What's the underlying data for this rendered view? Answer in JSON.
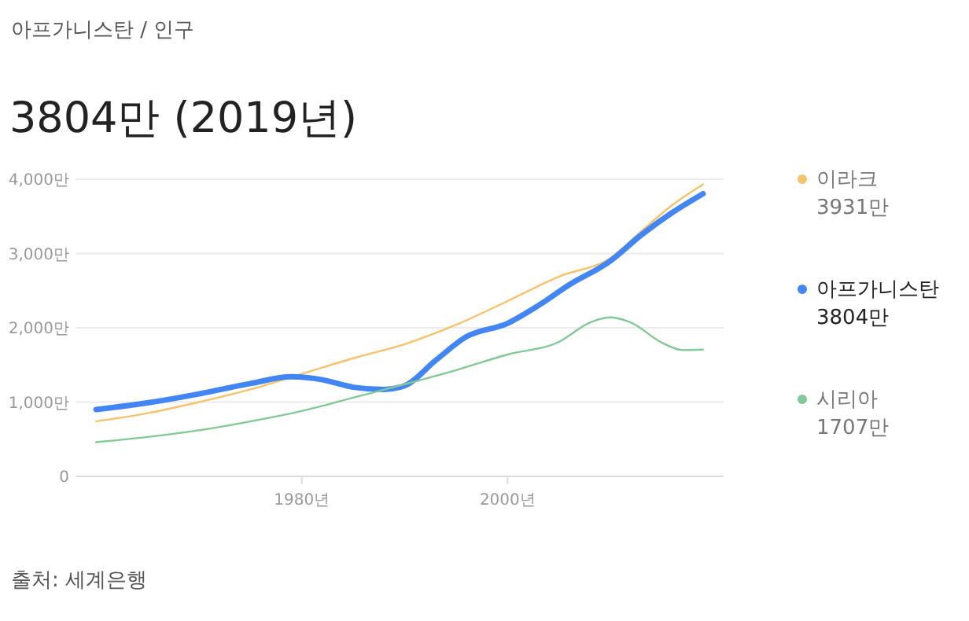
{
  "chart_data": {
    "type": "line",
    "subtitle": "아프가니스탄 / 인구",
    "title": "3804만 (2019년)",
    "xlim": [
      1958,
      2021
    ],
    "xticks": [
      {
        "value": 1980,
        "label": "1980년"
      },
      {
        "value": 2000,
        "label": "2000년"
      }
    ],
    "ylim": [
      0,
      4000
    ],
    "yticks": [
      0,
      {
        "value": 1000,
        "label": "1,000만"
      },
      {
        "value": 2000,
        "label": "2,000만"
      },
      {
        "value": 3000,
        "label": "3,000만"
      },
      {
        "value": 4000,
        "label": "4,000만"
      }
    ],
    "grid": "y",
    "legend": "right",
    "series": [
      {
        "name": "이라크",
        "color": "#f6c26b",
        "x": [
          1960,
          1965,
          1970,
          1975,
          1980,
          1985,
          1990,
          1995,
          2000,
          2005,
          2010,
          2013,
          2016,
          2019
        ],
        "values": [
          740,
          850,
          1000,
          1170,
          1380,
          1590,
          1780,
          2040,
          2360,
          2690,
          2940,
          3300,
          3650,
          3931
        ]
      },
      {
        "name": "아프가니스탄",
        "color": "#4285f4",
        "x": [
          1960,
          1965,
          1970,
          1975,
          1979,
          1982,
          1985,
          1988,
          1990,
          1993,
          1996,
          2000,
          2003,
          2006,
          2010,
          2013,
          2016,
          2019
        ],
        "values": [
          900,
          990,
          1110,
          1250,
          1340,
          1300,
          1200,
          1170,
          1220,
          1560,
          1880,
          2060,
          2300,
          2580,
          2900,
          3250,
          3550,
          3804
        ]
      },
      {
        "name": "시리아",
        "color": "#81c995",
        "x": [
          1960,
          1965,
          1970,
          1975,
          1980,
          1985,
          1990,
          1995,
          2000,
          2005,
          2008,
          2010,
          2012,
          2015,
          2017,
          2019
        ],
        "values": [
          460,
          530,
          620,
          740,
          880,
          1060,
          1240,
          1430,
          1640,
          1810,
          2070,
          2140,
          2070,
          1800,
          1700,
          1707
        ]
      }
    ],
    "annotations": [
      "3931만",
      "3804만",
      "1707만",
      "출처: 세계은행"
    ]
  }
}
